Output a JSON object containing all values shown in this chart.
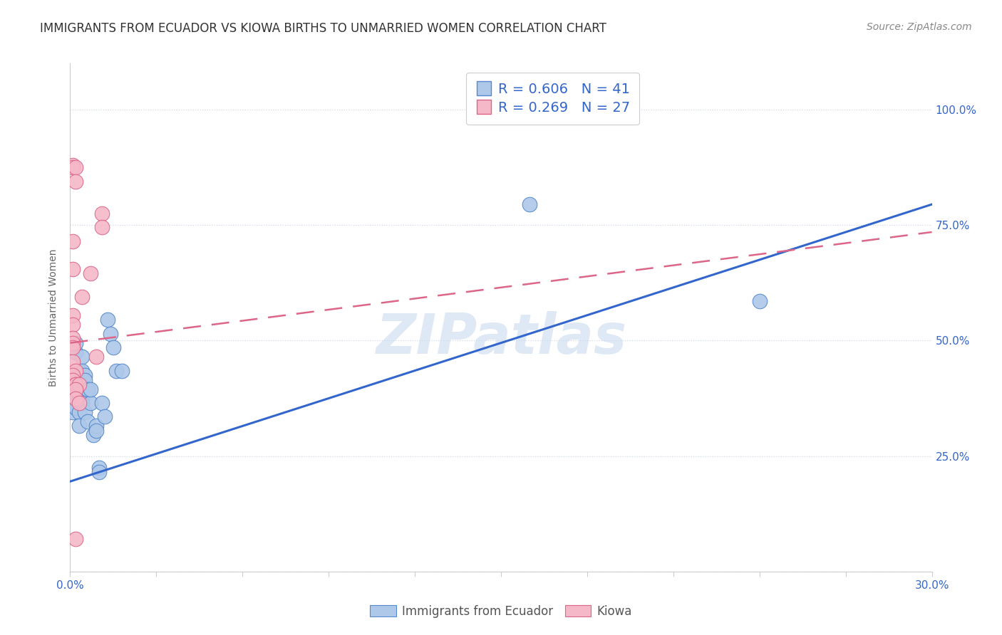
{
  "title": "IMMIGRANTS FROM ECUADOR VS KIOWA BIRTHS TO UNMARRIED WOMEN CORRELATION CHART",
  "source": "Source: ZipAtlas.com",
  "ylabel": "Births to Unmarried Women",
  "legend_blue_r": "R = 0.606",
  "legend_blue_n": "N = 41",
  "legend_pink_r": "R = 0.269",
  "legend_pink_n": "N = 27",
  "legend_label_blue": "Immigrants from Ecuador",
  "legend_label_pink": "Kiowa",
  "watermark": "ZIPatlas",
  "blue_color": "#adc8e8",
  "blue_line_color": "#3366cc",
  "blue_edge_color": "#5588cc",
  "pink_color": "#f5b8c8",
  "pink_line_color": "#dd6688",
  "pink_edge_color": "#dd6688",
  "blue_scatter": [
    [
      0.001,
      0.365
    ],
    [
      0.001,
      0.345
    ],
    [
      0.001,
      0.38
    ],
    [
      0.001,
      0.36
    ],
    [
      0.002,
      0.41
    ],
    [
      0.002,
      0.395
    ],
    [
      0.002,
      0.375
    ],
    [
      0.002,
      0.475
    ],
    [
      0.002,
      0.495
    ],
    [
      0.002,
      0.355
    ],
    [
      0.003,
      0.345
    ],
    [
      0.003,
      0.315
    ],
    [
      0.003,
      0.435
    ],
    [
      0.003,
      0.415
    ],
    [
      0.003,
      0.375
    ],
    [
      0.004,
      0.465
    ],
    [
      0.004,
      0.435
    ],
    [
      0.004,
      0.375
    ],
    [
      0.004,
      0.365
    ],
    [
      0.005,
      0.425
    ],
    [
      0.005,
      0.415
    ],
    [
      0.005,
      0.345
    ],
    [
      0.006,
      0.325
    ],
    [
      0.006,
      0.395
    ],
    [
      0.007,
      0.365
    ],
    [
      0.007,
      0.395
    ],
    [
      0.008,
      0.295
    ],
    [
      0.009,
      0.315
    ],
    [
      0.009,
      0.305
    ],
    [
      0.01,
      0.225
    ],
    [
      0.01,
      0.215
    ],
    [
      0.011,
      0.365
    ],
    [
      0.012,
      0.335
    ],
    [
      0.013,
      0.545
    ],
    [
      0.014,
      0.515
    ],
    [
      0.015,
      0.485
    ],
    [
      0.016,
      0.435
    ],
    [
      0.018,
      0.435
    ],
    [
      0.16,
      0.99
    ],
    [
      0.24,
      0.585
    ],
    [
      0.16,
      0.795
    ]
  ],
  "pink_scatter": [
    [
      0.001,
      0.88
    ],
    [
      0.001,
      0.875
    ],
    [
      0.002,
      0.875
    ],
    [
      0.002,
      0.845
    ],
    [
      0.001,
      0.715
    ],
    [
      0.001,
      0.655
    ],
    [
      0.001,
      0.555
    ],
    [
      0.001,
      0.535
    ],
    [
      0.001,
      0.505
    ],
    [
      0.001,
      0.495
    ],
    [
      0.001,
      0.485
    ],
    [
      0.001,
      0.455
    ],
    [
      0.002,
      0.435
    ],
    [
      0.001,
      0.425
    ],
    [
      0.001,
      0.415
    ],
    [
      0.002,
      0.405
    ],
    [
      0.002,
      0.405
    ],
    [
      0.003,
      0.405
    ],
    [
      0.002,
      0.395
    ],
    [
      0.002,
      0.375
    ],
    [
      0.003,
      0.365
    ],
    [
      0.004,
      0.595
    ],
    [
      0.007,
      0.645
    ],
    [
      0.009,
      0.465
    ],
    [
      0.011,
      0.775
    ],
    [
      0.011,
      0.745
    ],
    [
      0.002,
      0.07
    ]
  ],
  "xlim": [
    0.0,
    0.3
  ],
  "ylim": [
    0.0,
    1.1
  ],
  "yticks": [
    0.0,
    0.25,
    0.5,
    0.75,
    1.0
  ],
  "xticks": [
    0.0,
    0.03,
    0.06,
    0.09,
    0.12,
    0.15,
    0.18,
    0.21,
    0.24,
    0.27,
    0.3
  ],
  "blue_line_x": [
    0.0,
    0.3
  ],
  "blue_line_y": [
    0.195,
    0.795
  ],
  "pink_line_x": [
    0.0,
    0.3
  ],
  "pink_line_y": [
    0.495,
    0.735
  ],
  "title_fontsize": 12,
  "axis_label_fontsize": 10,
  "tick_fontsize": 11,
  "source_fontsize": 10,
  "background_color": "#ffffff",
  "grid_color": "#d0d8e8",
  "spine_color": "#cccccc"
}
